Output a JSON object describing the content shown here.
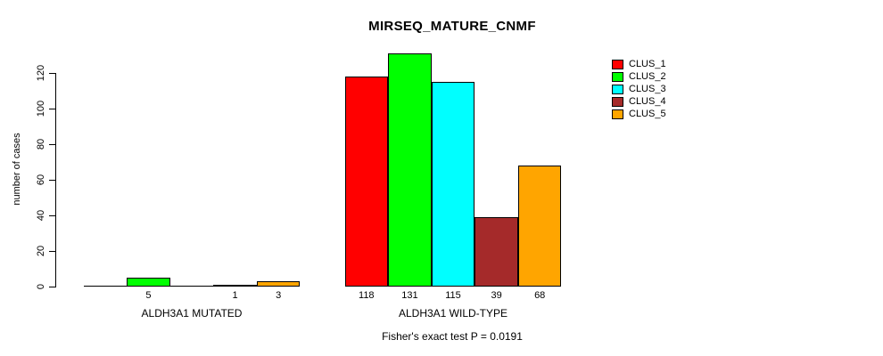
{
  "chart_data": {
    "type": "bar",
    "title": "MIRSEQ_MATURE_CNMF",
    "ylabel": "number of cases",
    "xlabel": "",
    "footer": "Fisher's exact test P = 0.0191",
    "ylim": [
      0,
      131
    ],
    "yticks": [
      0,
      20,
      40,
      60,
      80,
      100,
      120
    ],
    "grid": false,
    "legend_position": "top-right-inside",
    "categories": [
      "ALDH3A1 MUTATED",
      "ALDH3A1 WILD-TYPE"
    ],
    "series": [
      {
        "name": "CLUS_1",
        "color": "#FF0000",
        "values": [
          0,
          118
        ]
      },
      {
        "name": "CLUS_2",
        "color": "#00FF00",
        "values": [
          5,
          131
        ]
      },
      {
        "name": "CLUS_3",
        "color": "#00FFFF",
        "values": [
          0,
          115
        ]
      },
      {
        "name": "CLUS_4",
        "color": "#A52A2A",
        "values": [
          1,
          39
        ]
      },
      {
        "name": "CLUS_5",
        "color": "#FFA500",
        "values": [
          3,
          68
        ]
      }
    ],
    "bar_labels": {
      "ALDH3A1 MUTATED": [
        "",
        "5",
        "",
        "1",
        "3"
      ],
      "ALDH3A1 WILD-TYPE": [
        "118",
        "131",
        "115",
        "39",
        "68"
      ]
    },
    "zero_value_labels_hidden": true,
    "axis_color": "#000000",
    "background_color": "#FFFFFF"
  }
}
